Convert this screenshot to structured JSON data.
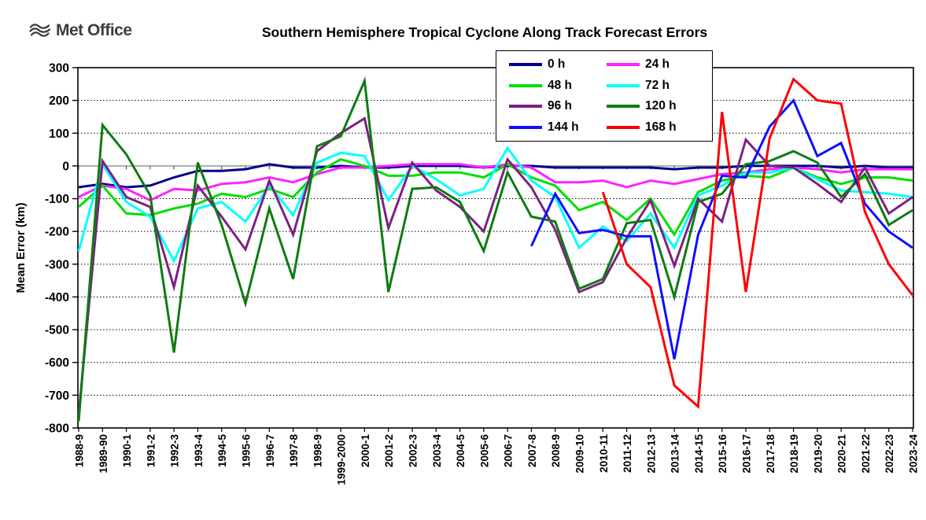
{
  "logo": {
    "text": "Met Office"
  },
  "title": "Southern Hemisphere Tropical Cyclone Along Track Forecast Errors",
  "chart_data": {
    "type": "line",
    "title": "Southern Hemisphere Tropical Cyclone Along Track Forecast Errors",
    "xlabel": "",
    "ylabel": "Mean Error (km)",
    "ylim": [
      -800,
      300
    ],
    "ytick_step": 100,
    "yticks": [
      300,
      200,
      100,
      0,
      -100,
      -200,
      -300,
      -400,
      -500,
      -600,
      -700,
      -800
    ],
    "grid": "horizontal-dotted",
    "zero_line": "solid-gray",
    "legend_position": "top-center",
    "categories": [
      "1988-9",
      "1989-90",
      "1990-1",
      "1991-2",
      "1992-3",
      "1993-4",
      "1994-5",
      "1995-6",
      "1996-7",
      "1997-8",
      "1998-9",
      "1999-2000",
      "2000-1",
      "2001-2",
      "2002-3",
      "2003-4",
      "2004-5",
      "2005-6",
      "2006-7",
      "2007-8",
      "2008-9",
      "2009-10",
      "2010-11",
      "2011-12",
      "2012-13",
      "2013-14",
      "2014-15",
      "2015-16",
      "2016-17",
      "2017-18",
      "2018-19",
      "2019-20",
      "2020-21",
      "2021-22",
      "2022-23",
      "2023-24"
    ],
    "series": [
      {
        "name": "0 h",
        "color": "#00008C",
        "values": [
          -65,
          -55,
          -65,
          -60,
          -35,
          -15,
          -15,
          -10,
          5,
          -5,
          -5,
          0,
          -5,
          -5,
          0,
          0,
          0,
          -5,
          0,
          0,
          -5,
          -5,
          -5,
          -5,
          -5,
          -10,
          -5,
          -5,
          0,
          0,
          0,
          0,
          -5,
          0,
          -5,
          -5
        ]
      },
      {
        "name": "24 h",
        "color": "#FF22FF",
        "values": [
          -95,
          -60,
          -70,
          -105,
          -70,
          -75,
          -55,
          -50,
          -35,
          -50,
          -25,
          -5,
          -5,
          0,
          5,
          5,
          5,
          -5,
          5,
          -5,
          -50,
          -50,
          -45,
          -65,
          -45,
          -55,
          -40,
          -25,
          -20,
          -10,
          -5,
          -10,
          -20,
          -10,
          -10,
          -10
        ]
      },
      {
        "name": "48 h",
        "color": "#00DF00",
        "values": [
          -125,
          -60,
          -145,
          -150,
          -130,
          -115,
          -85,
          -95,
          -70,
          -95,
          -20,
          20,
          0,
          -30,
          -30,
          -20,
          -20,
          -35,
          5,
          -35,
          -60,
          -135,
          -110,
          -165,
          -100,
          -210,
          -80,
          -45,
          -30,
          -35,
          -5,
          -35,
          -55,
          -35,
          -35,
          -45
        ]
      },
      {
        "name": "72 h",
        "color": "#00FFFF",
        "values": [
          -260,
          5,
          -110,
          -155,
          -290,
          -130,
          -110,
          -170,
          -60,
          -150,
          10,
          40,
          30,
          -105,
          0,
          -40,
          -90,
          -70,
          55,
          -45,
          -95,
          -250,
          -185,
          -230,
          -145,
          -250,
          -90,
          -60,
          -20,
          -20,
          -5,
          -40,
          -75,
          -80,
          -85,
          -95
        ]
      },
      {
        "name": "96 h",
        "color": "#7C2182",
        "values": [
          -760,
          15,
          -95,
          -125,
          -370,
          -60,
          -155,
          -255,
          -45,
          -210,
          45,
          100,
          145,
          -190,
          10,
          -75,
          -125,
          -200,
          20,
          -65,
          -195,
          -385,
          -355,
          -220,
          -105,
          -305,
          -100,
          -170,
          80,
          0,
          -5,
          -55,
          -110,
          -5,
          -145,
          -95
        ]
      },
      {
        "name": "120 h",
        "color": "#0E7C11",
        "values": [
          -780,
          125,
          35,
          -90,
          -570,
          10,
          -180,
          -420,
          -130,
          -345,
          60,
          90,
          260,
          -385,
          -70,
          -65,
          -110,
          -260,
          -20,
          -155,
          -170,
          -375,
          -345,
          -175,
          -165,
          -400,
          -110,
          -85,
          5,
          15,
          45,
          10,
          -95,
          -25,
          -180,
          -135
        ]
      },
      {
        "name": "144 h",
        "color": "#0F0FFF",
        "values": [
          null,
          null,
          null,
          null,
          null,
          null,
          null,
          null,
          null,
          null,
          null,
          null,
          null,
          null,
          null,
          null,
          null,
          null,
          null,
          -245,
          -85,
          -205,
          -195,
          -215,
          -215,
          -590,
          -210,
          -30,
          -35,
          120,
          200,
          30,
          70,
          -115,
          -200,
          -250
        ]
      },
      {
        "name": "168 h",
        "color": "#FF0000",
        "values": [
          null,
          null,
          null,
          null,
          null,
          null,
          null,
          null,
          null,
          null,
          null,
          null,
          null,
          null,
          null,
          null,
          null,
          null,
          null,
          null,
          null,
          null,
          -80,
          -300,
          -370,
          -670,
          -735,
          165,
          -385,
          85,
          265,
          200,
          190,
          -140,
          -300,
          -395
        ]
      }
    ]
  }
}
